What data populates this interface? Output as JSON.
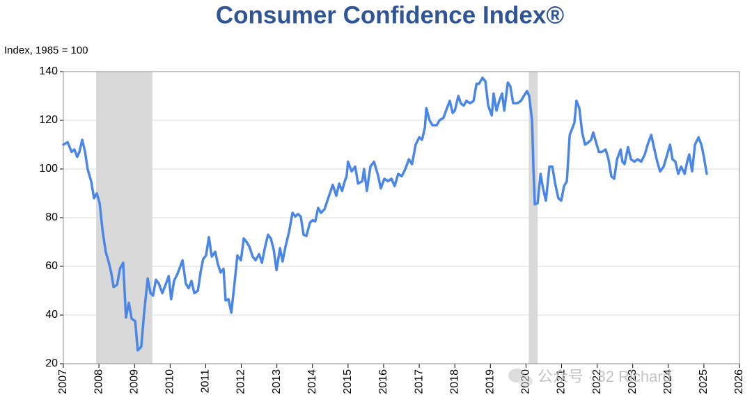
{
  "chart_data": {
    "type": "line",
    "title": "Consumer Confidence Index®",
    "y_label": "Index, 1985 = 100",
    "watermark": "公众号 · 32 Richard",
    "xlim": [
      2007,
      2026
    ],
    "xticks": [
      2007,
      2008,
      2009,
      2010,
      2011,
      2012,
      2013,
      2014,
      2015,
      2016,
      2017,
      2018,
      2019,
      2020,
      2021,
      2022,
      2023,
      2024,
      2025,
      2026
    ],
    "ylim": [
      20,
      140
    ],
    "yticks": [
      20,
      40,
      60,
      80,
      100,
      120,
      140
    ],
    "grid": true,
    "shaded_periods": [
      [
        2007.92,
        2009.5
      ],
      [
        2020.08,
        2020.33
      ]
    ],
    "shade_color": "#d9d9d9",
    "series": [
      {
        "color": "#4a86e8",
        "x": [
          2007.0,
          2007.12,
          2007.23,
          2007.31,
          2007.39,
          2007.45,
          2007.53,
          2007.61,
          2007.68,
          2007.78,
          2007.86,
          2007.94,
          2008.02,
          2008.1,
          2008.19,
          2008.27,
          2008.35,
          2008.41,
          2008.51,
          2008.59,
          2008.68,
          2008.76,
          2008.84,
          2008.92,
          2009.02,
          2009.09,
          2009.19,
          2009.27,
          2009.37,
          2009.45,
          2009.52,
          2009.6,
          2009.68,
          2009.78,
          2009.86,
          2009.96,
          2010.03,
          2010.11,
          2010.21,
          2010.35,
          2010.44,
          2010.52,
          2010.6,
          2010.68,
          2010.78,
          2010.86,
          2010.93,
          2011.01,
          2011.09,
          2011.17,
          2011.27,
          2011.34,
          2011.42,
          2011.5,
          2011.56,
          2011.64,
          2011.72,
          2011.81,
          2011.89,
          2011.99,
          2012.07,
          2012.15,
          2012.23,
          2012.32,
          2012.4,
          2012.5,
          2012.58,
          2012.66,
          2012.75,
          2012.83,
          2012.91,
          2012.99,
          2013.09,
          2013.16,
          2013.24,
          2013.34,
          2013.44,
          2013.52,
          2013.59,
          2013.67,
          2013.75,
          2013.83,
          2013.93,
          2014.01,
          2014.08,
          2014.16,
          2014.24,
          2014.34,
          2014.42,
          2014.5,
          2014.57,
          2014.67,
          2014.75,
          2014.83,
          2014.91,
          2014.96,
          2015.0,
          2015.1,
          2015.2,
          2015.28,
          2015.4,
          2015.45,
          2015.53,
          2015.63,
          2015.73,
          2015.85,
          2015.92,
          2016.02,
          2016.12,
          2016.22,
          2016.31,
          2016.41,
          2016.51,
          2016.61,
          2016.71,
          2016.8,
          2016.9,
          2017.0,
          2017.08,
          2017.16,
          2017.2,
          2017.29,
          2017.37,
          2017.49,
          2017.57,
          2017.68,
          2017.78,
          2017.86,
          2017.94,
          2018.0,
          2018.1,
          2018.17,
          2018.25,
          2018.33,
          2018.43,
          2018.53,
          2018.61,
          2018.68,
          2018.78,
          2018.86,
          2018.94,
          2019.04,
          2019.09,
          2019.17,
          2019.25,
          2019.33,
          2019.39,
          2019.49,
          2019.56,
          2019.64,
          2019.76,
          2019.86,
          2019.94,
          2020.03,
          2020.09,
          2020.17,
          2020.21,
          2020.25,
          2020.33,
          2020.41,
          2020.48,
          2020.56,
          2020.66,
          2020.74,
          2020.82,
          2020.91,
          2020.99,
          2021.07,
          2021.15,
          2021.23,
          2021.31,
          2021.36,
          2021.42,
          2021.5,
          2021.58,
          2021.66,
          2021.76,
          2021.83,
          2021.89,
          2021.97,
          2022.05,
          2022.13,
          2022.24,
          2022.32,
          2022.4,
          2022.48,
          2022.56,
          2022.66,
          2022.71,
          2022.77,
          2022.87,
          2022.95,
          2023.05,
          2023.14,
          2023.24,
          2023.34,
          2023.42,
          2023.52,
          2023.61,
          2023.69,
          2023.77,
          2023.87,
          2023.97,
          2024.05,
          2024.12,
          2024.2,
          2024.28,
          2024.36,
          2024.46,
          2024.53,
          2024.59,
          2024.67,
          2024.75,
          2024.85,
          2024.93,
          2025.0,
          2025.08
        ],
        "values": [
          110,
          111,
          107,
          108,
          105,
          107,
          112,
          107,
          100,
          95,
          88,
          90,
          86,
          75,
          66,
          62,
          57,
          51.5,
          52.5,
          59,
          61.5,
          39,
          45,
          38.5,
          37.5,
          25.5,
          27,
          41,
          55,
          49,
          48,
          54.5,
          53,
          49,
          52,
          56,
          46.5,
          54,
          57,
          62.5,
          53,
          51,
          54,
          49,
          50,
          58,
          63,
          64.5,
          72,
          64,
          66,
          61,
          57.5,
          59,
          46,
          46.5,
          41,
          53,
          64.5,
          62.5,
          71.5,
          70,
          68,
          64,
          62.5,
          65,
          61.5,
          67.5,
          73,
          71.5,
          67,
          58.5,
          67.5,
          62,
          68,
          74,
          82,
          80.5,
          81.5,
          80.5,
          73,
          72.5,
          78,
          79,
          78.5,
          84,
          82,
          83.5,
          87,
          90.5,
          93.5,
          89,
          94,
          91,
          95,
          97,
          103,
          99,
          101,
          94,
          95,
          100,
          91,
          101,
          103,
          97,
          92,
          96,
          95,
          96,
          93,
          98,
          97,
          100,
          104,
          102,
          110,
          113,
          112,
          117,
          125,
          120,
          118,
          118,
          120,
          121,
          125,
          128,
          123,
          124,
          130,
          127,
          126,
          128,
          127,
          128,
          135,
          135,
          137.5,
          136,
          126,
          122,
          131,
          124,
          128,
          131,
          124,
          135.5,
          134,
          127,
          127,
          128,
          130,
          132,
          130,
          120,
          100,
          85.5,
          86,
          98,
          92,
          87,
          101,
          101,
          94,
          88,
          87,
          93,
          95,
          114,
          117,
          119,
          128,
          125,
          115,
          110,
          111,
          112,
          115,
          111,
          107,
          107,
          108,
          104,
          97,
          96,
          104,
          108,
          103,
          102,
          109,
          104,
          103,
          104,
          103,
          106,
          110,
          114,
          108,
          103,
          99,
          101,
          106,
          110,
          104,
          103,
          98,
          101,
          98,
          103,
          106,
          99,
          110,
          113,
          110,
          105,
          98
        ]
      }
    ]
  }
}
